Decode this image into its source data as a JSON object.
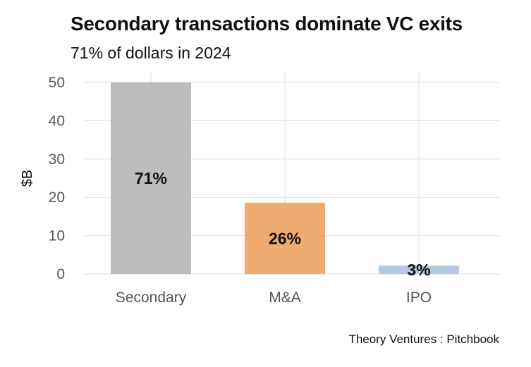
{
  "header": {
    "title": "Secondary transactions dominate VC exits",
    "subtitle": "71% of dollars in 2024"
  },
  "footer": {
    "source": "Theory Ventures : Pitchbook"
  },
  "chart_data": {
    "type": "bar",
    "title": "Secondary transactions dominate VC exits",
    "subtitle": "71% of dollars in 2024",
    "xlabel": "",
    "ylabel": "$B",
    "categories": [
      "Secondary",
      "M&A",
      "IPO"
    ],
    "values": [
      50,
      18.6,
      2.2
    ],
    "data_labels": [
      "71%",
      "26%",
      "3%"
    ],
    "colors": [
      "#bdbdbd",
      "#efab70",
      "#b6c9de"
    ],
    "ylim": [
      0,
      50
    ],
    "yticks": [
      0,
      10,
      20,
      30,
      40,
      50
    ],
    "grid": true,
    "legend": "none"
  }
}
